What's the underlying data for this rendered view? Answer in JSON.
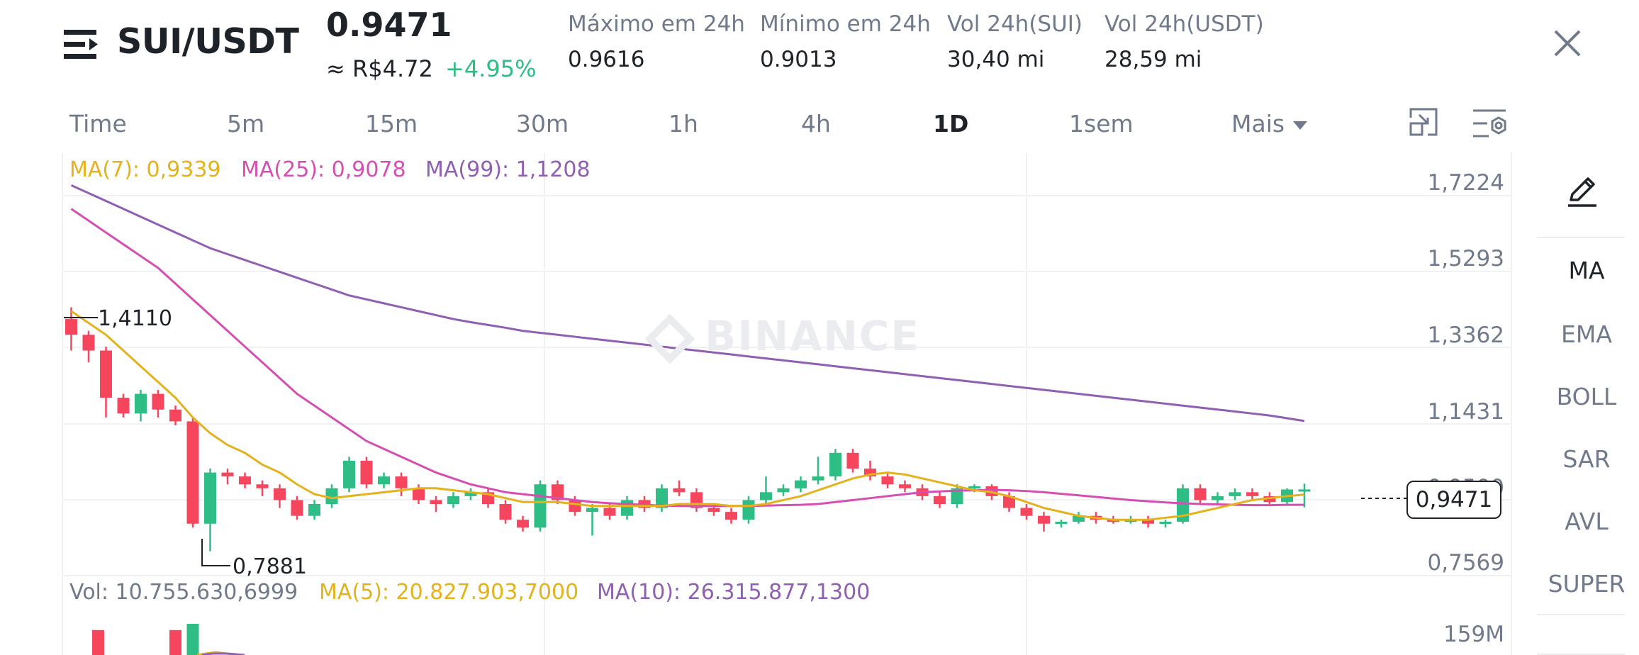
{
  "header": {
    "pair": "SUI/USDT",
    "last_price": "0.9471",
    "fiat_price": "≈ R$4.72",
    "change_pct": "+4.95%",
    "stats": [
      {
        "label": "Máximo em 24h",
        "value": "0.9616"
      },
      {
        "label": "Mínimo em 24h",
        "value": "0.9013"
      },
      {
        "label": "Vol 24h(SUI)",
        "value": "30,40 mi"
      },
      {
        "label": "Vol 24h(USDT)",
        "value": "28,59 mi"
      }
    ]
  },
  "timeframes": [
    "Time",
    "5m",
    "15m",
    "30m",
    "1h",
    "4h",
    "1D",
    "1sem",
    "Mais"
  ],
  "active_timeframe": "1D",
  "indicators": [
    "MA",
    "EMA",
    "BOLL",
    "SAR",
    "AVL",
    "SUPER"
  ],
  "active_indicator": "MA",
  "watermark": "BINANCE",
  "legend": {
    "ma7": "MA(7): 0,9339",
    "ma25": "MA(25): 0,9078",
    "ma99": "MA(99): 1,1208"
  },
  "vol_legend": {
    "vol": "Vol: 10.755.630,6999",
    "ma5": "MA(5): 20.827.903,7000",
    "ma10": "MA(10): 26.315.877,1300"
  },
  "price_axis": [
    "1,7224",
    "1,5293",
    "1,3362",
    "1,1431",
    "0,9500",
    "0,7569"
  ],
  "volume_axis": "159M",
  "high_marker": "1,4110",
  "low_marker": "0,7881",
  "current_price_label": "0,9471",
  "colors": {
    "up": "#2ebd85",
    "down": "#f6465d",
    "ma7": "#e4b21d",
    "ma25": "#d54fb3",
    "ma99": "#8f5fb3"
  },
  "chart_data": {
    "type": "candlestick",
    "y_axis_ticks": [
      1.7224,
      1.5293,
      1.3362,
      1.1431,
      0.95,
      0.7569
    ],
    "candles": [
      [
        1.38,
        1.41,
        1.3,
        1.34
      ],
      [
        1.34,
        1.35,
        1.27,
        1.3
      ],
      [
        1.3,
        1.31,
        1.13,
        1.18
      ],
      [
        1.18,
        1.19,
        1.13,
        1.14
      ],
      [
        1.14,
        1.2,
        1.12,
        1.19
      ],
      [
        1.19,
        1.2,
        1.13,
        1.15
      ],
      [
        1.15,
        1.16,
        1.11,
        1.12
      ],
      [
        1.12,
        1.13,
        0.85,
        0.86
      ],
      [
        0.86,
        1.0,
        0.79,
        0.99
      ],
      [
        0.99,
        1.0,
        0.96,
        0.98
      ],
      [
        0.98,
        0.99,
        0.95,
        0.96
      ],
      [
        0.96,
        0.97,
        0.93,
        0.95
      ],
      [
        0.95,
        0.96,
        0.9,
        0.92
      ],
      [
        0.92,
        0.93,
        0.87,
        0.88
      ],
      [
        0.88,
        0.92,
        0.87,
        0.91
      ],
      [
        0.91,
        0.96,
        0.9,
        0.95
      ],
      [
        0.95,
        1.03,
        0.94,
        1.02
      ],
      [
        1.02,
        1.03,
        0.95,
        0.96
      ],
      [
        0.96,
        0.99,
        0.95,
        0.98
      ],
      [
        0.98,
        0.99,
        0.93,
        0.95
      ],
      [
        0.95,
        0.96,
        0.91,
        0.92
      ],
      [
        0.92,
        0.93,
        0.89,
        0.91
      ],
      [
        0.91,
        0.94,
        0.9,
        0.93
      ],
      [
        0.93,
        0.95,
        0.92,
        0.94
      ],
      [
        0.94,
        0.95,
        0.9,
        0.91
      ],
      [
        0.91,
        0.92,
        0.86,
        0.87
      ],
      [
        0.87,
        0.88,
        0.84,
        0.85
      ],
      [
        0.85,
        0.97,
        0.84,
        0.96
      ],
      [
        0.96,
        0.97,
        0.91,
        0.92
      ],
      [
        0.92,
        0.93,
        0.88,
        0.89
      ],
      [
        0.89,
        0.91,
        0.83,
        0.9
      ],
      [
        0.9,
        0.91,
        0.87,
        0.88
      ],
      [
        0.88,
        0.93,
        0.87,
        0.92
      ],
      [
        0.92,
        0.93,
        0.89,
        0.9
      ],
      [
        0.9,
        0.96,
        0.89,
        0.95
      ],
      [
        0.95,
        0.97,
        0.93,
        0.94
      ],
      [
        0.94,
        0.95,
        0.89,
        0.9
      ],
      [
        0.9,
        0.91,
        0.88,
        0.89
      ],
      [
        0.89,
        0.9,
        0.86,
        0.87
      ],
      [
        0.87,
        0.93,
        0.86,
        0.92
      ],
      [
        0.92,
        0.98,
        0.91,
        0.94
      ],
      [
        0.94,
        0.96,
        0.93,
        0.95
      ],
      [
        0.95,
        0.98,
        0.94,
        0.97
      ],
      [
        0.97,
        1.03,
        0.96,
        0.98
      ],
      [
        0.98,
        1.05,
        0.97,
        1.04
      ],
      [
        1.04,
        1.05,
        0.99,
        1.0
      ],
      [
        1.0,
        1.02,
        0.97,
        0.98
      ],
      [
        0.98,
        0.99,
        0.95,
        0.96
      ],
      [
        0.96,
        0.97,
        0.94,
        0.95
      ],
      [
        0.95,
        0.96,
        0.92,
        0.93
      ],
      [
        0.93,
        0.94,
        0.9,
        0.91
      ],
      [
        0.91,
        0.96,
        0.9,
        0.95
      ],
      [
        0.95,
        0.96,
        0.94,
        0.955
      ],
      [
        0.955,
        0.96,
        0.92,
        0.93
      ],
      [
        0.93,
        0.94,
        0.89,
        0.9
      ],
      [
        0.9,
        0.91,
        0.87,
        0.88
      ],
      [
        0.88,
        0.89,
        0.84,
        0.86
      ],
      [
        0.86,
        0.87,
        0.85,
        0.865
      ],
      [
        0.865,
        0.89,
        0.86,
        0.88
      ],
      [
        0.88,
        0.89,
        0.86,
        0.87
      ],
      [
        0.87,
        0.88,
        0.86,
        0.865
      ],
      [
        0.865,
        0.88,
        0.86,
        0.87
      ],
      [
        0.87,
        0.88,
        0.85,
        0.86
      ],
      [
        0.86,
        0.87,
        0.85,
        0.865
      ],
      [
        0.865,
        0.96,
        0.86,
        0.95
      ],
      [
        0.95,
        0.96,
        0.91,
        0.92
      ],
      [
        0.92,
        0.94,
        0.91,
        0.93
      ],
      [
        0.93,
        0.95,
        0.92,
        0.94
      ],
      [
        0.94,
        0.95,
        0.92,
        0.93
      ],
      [
        0.93,
        0.94,
        0.91,
        0.915
      ],
      [
        0.915,
        0.95,
        0.91,
        0.947
      ],
      [
        0.947,
        0.9616,
        0.9013,
        0.9471
      ]
    ],
    "ma7": [
      1.4,
      1.37,
      1.34,
      1.3,
      1.26,
      1.22,
      1.18,
      1.13,
      1.09,
      1.06,
      1.04,
      1.01,
      0.99,
      0.96,
      0.935,
      0.925,
      0.93,
      0.935,
      0.94,
      0.945,
      0.95,
      0.95,
      0.945,
      0.94,
      0.935,
      0.925,
      0.915,
      0.915,
      0.915,
      0.91,
      0.905,
      0.905,
      0.905,
      0.905,
      0.905,
      0.91,
      0.91,
      0.91,
      0.905,
      0.905,
      0.91,
      0.92,
      0.93,
      0.945,
      0.96,
      0.975,
      0.985,
      0.99,
      0.985,
      0.975,
      0.965,
      0.955,
      0.945,
      0.94,
      0.93,
      0.915,
      0.9,
      0.89,
      0.88,
      0.875,
      0.87,
      0.87,
      0.87,
      0.875,
      0.88,
      0.89,
      0.9,
      0.91,
      0.92,
      0.925,
      0.93,
      0.934
    ],
    "ma25": [
      1.66,
      1.63,
      1.6,
      1.57,
      1.54,
      1.51,
      1.47,
      1.43,
      1.39,
      1.35,
      1.31,
      1.27,
      1.23,
      1.19,
      1.16,
      1.13,
      1.1,
      1.07,
      1.05,
      1.03,
      1.01,
      0.99,
      0.975,
      0.96,
      0.95,
      0.94,
      0.935,
      0.93,
      0.925,
      0.92,
      0.915,
      0.912,
      0.91,
      0.908,
      0.906,
      0.905,
      0.905,
      0.905,
      0.905,
      0.905,
      0.906,
      0.907,
      0.908,
      0.91,
      0.915,
      0.92,
      0.925,
      0.93,
      0.935,
      0.94,
      0.942,
      0.944,
      0.945,
      0.946,
      0.945,
      0.943,
      0.94,
      0.936,
      0.932,
      0.928,
      0.924,
      0.92,
      0.917,
      0.914,
      0.912,
      0.91,
      0.909,
      0.908,
      0.907,
      0.907,
      0.908,
      0.908
    ],
    "ma99": [
      1.72,
      1.7,
      1.68,
      1.66,
      1.64,
      1.62,
      1.6,
      1.58,
      1.56,
      1.545,
      1.53,
      1.515,
      1.5,
      1.485,
      1.47,
      1.455,
      1.44,
      1.43,
      1.42,
      1.41,
      1.4,
      1.39,
      1.38,
      1.372,
      1.365,
      1.358,
      1.35,
      1.345,
      1.34,
      1.335,
      1.33,
      1.325,
      1.32,
      1.315,
      1.31,
      1.305,
      1.3,
      1.295,
      1.29,
      1.285,
      1.28,
      1.275,
      1.27,
      1.265,
      1.26,
      1.255,
      1.25,
      1.245,
      1.24,
      1.235,
      1.23,
      1.225,
      1.22,
      1.215,
      1.21,
      1.205,
      1.2,
      1.195,
      1.19,
      1.185,
      1.18,
      1.175,
      1.17,
      1.165,
      1.16,
      1.155,
      1.15,
      1.145,
      1.14,
      1.135,
      1.128,
      1.121
    ],
    "volume_visible": [
      3.2,
      0.0,
      0.0,
      0.0,
      0.0,
      0.0,
      3.2,
      4.0
    ]
  }
}
